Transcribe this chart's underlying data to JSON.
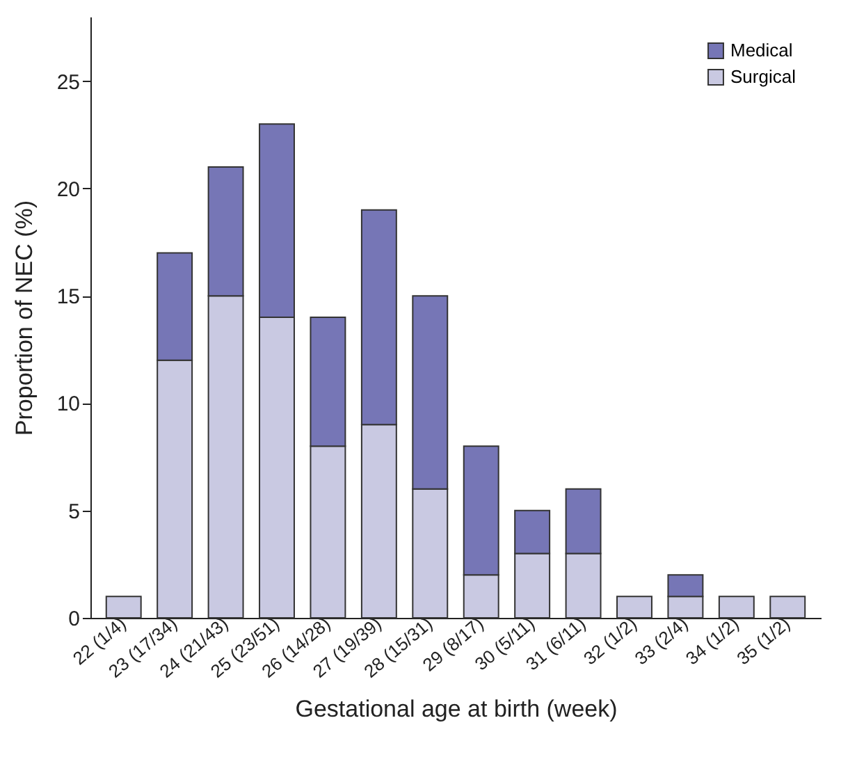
{
  "chart_data": {
    "type": "bar",
    "stacked": true,
    "xlabel": "Gestational age at birth (week)",
    "ylabel": "Proportion of NEC (%)",
    "categories": [
      "22 (1/4)",
      "23 (17/34)",
      "24 (21/43)",
      "25 (23/51)",
      "26 (14/28)",
      "27 (19/39)",
      "28 (15/31)",
      "29 (8/17)",
      "30 (5/11)",
      "31 (6/11)",
      "32 (1/2)",
      "33 (2/4)",
      "34 (1/2)",
      "35 (1/2)"
    ],
    "series": [
      {
        "name": "Surgical",
        "color": "#c9c9e2",
        "values": [
          1,
          12,
          15,
          14,
          8,
          9,
          6,
          2,
          3,
          3,
          1,
          1,
          1,
          1
        ]
      },
      {
        "name": "Medical",
        "color": "#7676b6",
        "values": [
          null,
          5,
          6,
          9,
          6,
          10,
          9,
          6,
          2,
          3,
          null,
          1,
          null,
          null
        ]
      }
    ],
    "ylim": [
      0,
      28
    ],
    "yticks": [
      0,
      5,
      10,
      15,
      20,
      25
    ],
    "grid": false,
    "legend": "top right"
  }
}
